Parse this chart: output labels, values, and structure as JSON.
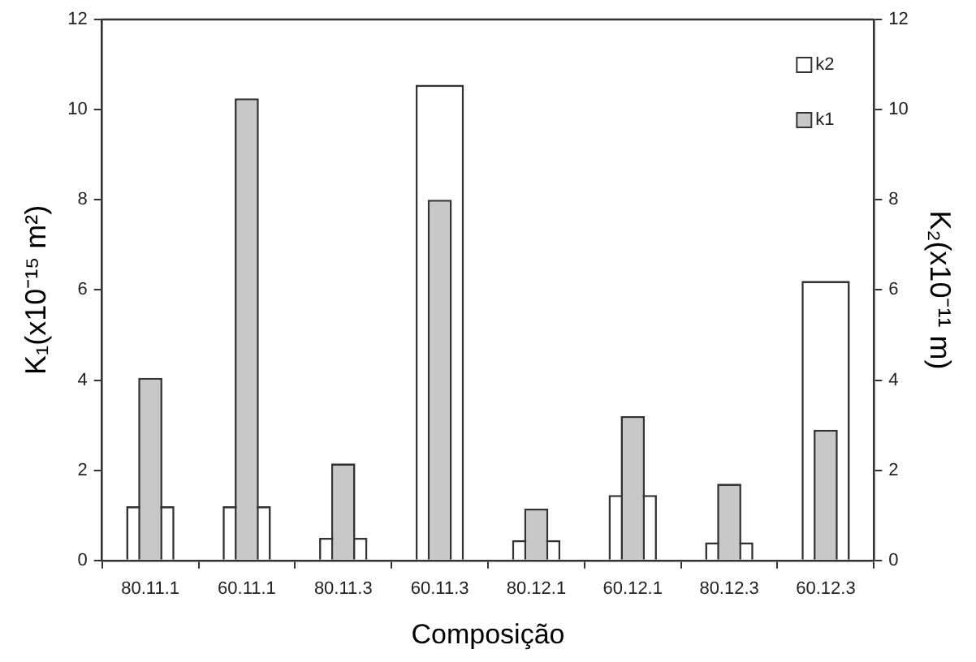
{
  "chart_data": {
    "type": "bar",
    "xlabel": "Composição",
    "ylabel": "K₁(x10⁻¹⁵ m²)",
    "y2label": "K₂(x10⁻¹¹ m)",
    "categories": [
      "80.11.1",
      "60.11.1",
      "80.11.3",
      "60.11.3",
      "80.12.1",
      "60.12.1",
      "80.12.3",
      "60.12.3"
    ],
    "series": [
      {
        "name": "k2",
        "color": "#ffffff",
        "axis": "y2",
        "values": [
          1.2,
          1.2,
          0.5,
          10.55,
          0.45,
          1.45,
          0.4,
          6.2
        ]
      },
      {
        "name": "k1",
        "color": "#c8c8c8",
        "values": [
          4.05,
          10.25,
          2.15,
          8.0,
          1.15,
          3.2,
          1.7,
          2.9
        ]
      }
    ],
    "ylim": [
      0,
      12
    ],
    "yticks": [
      0,
      2,
      4,
      6,
      8,
      10,
      12
    ],
    "y2lim": [
      0,
      12
    ],
    "y2ticks": [
      0,
      2,
      4,
      6,
      8,
      10,
      12
    ],
    "grid": false,
    "legend": "top right"
  }
}
